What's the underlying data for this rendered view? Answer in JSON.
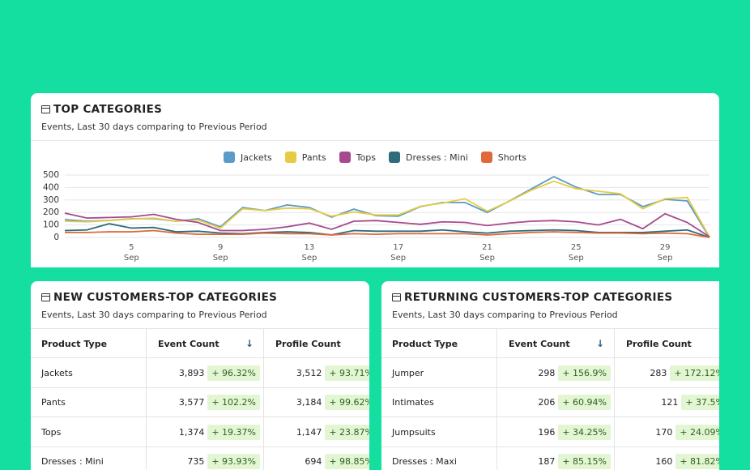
{
  "header": {
    "title": "TOP CATEGORIES",
    "subtitle": "Events, Last 30 days comparing to Previous Period"
  },
  "chart_data": {
    "type": "line",
    "categories": [
      null,
      null,
      null,
      "5\nSep",
      null,
      null,
      null,
      "9\nSep",
      null,
      null,
      null,
      "13\nSep",
      null,
      null,
      null,
      "17\nSep",
      null,
      null,
      null,
      "21\nSep",
      null,
      null,
      null,
      "25\nSep",
      null,
      null,
      null,
      "29\nSep",
      null,
      null
    ],
    "series": [
      {
        "name": "Jackets",
        "color": "#5b9bc7",
        "values": [
          143,
          130,
          136,
          150,
          150,
          130,
          150,
          85,
          240,
          215,
          260,
          240,
          162,
          227,
          175,
          170,
          247,
          280,
          280,
          200,
          292,
          390,
          487,
          403,
          344,
          344,
          247,
          305,
          292,
          0
        ]
      },
      {
        "name": "Pants",
        "color": "#e6cc43",
        "values": [
          130,
          125,
          135,
          148,
          155,
          130,
          140,
          75,
          230,
          215,
          235,
          230,
          170,
          205,
          180,
          180,
          250,
          275,
          310,
          210,
          290,
          380,
          450,
          390,
          370,
          350,
          230,
          310,
          320,
          5
        ]
      },
      {
        "name": "Tops",
        "color": "#a6498e",
        "values": [
          195,
          155,
          160,
          165,
          185,
          145,
          120,
          55,
          55,
          65,
          85,
          115,
          65,
          130,
          135,
          120,
          105,
          125,
          120,
          95,
          115,
          130,
          135,
          125,
          100,
          145,
          70,
          190,
          120,
          5
        ]
      },
      {
        "name": "Dresses : Mini",
        "color": "#2e6b7b",
        "values": [
          55,
          60,
          110,
          75,
          80,
          45,
          50,
          35,
          30,
          40,
          45,
          40,
          20,
          55,
          50,
          50,
          50,
          60,
          45,
          35,
          50,
          55,
          60,
          55,
          40,
          40,
          40,
          50,
          60,
          0
        ]
      },
      {
        "name": "Shorts",
        "color": "#e0693a",
        "values": [
          40,
          40,
          45,
          45,
          55,
          35,
          25,
          25,
          25,
          35,
          30,
          30,
          20,
          30,
          25,
          30,
          30,
          30,
          30,
          20,
          30,
          40,
          45,
          40,
          35,
          35,
          30,
          35,
          30,
          0
        ]
      }
    ],
    "ylim": [
      0,
      500
    ],
    "yticks": [
      0,
      100,
      200,
      300,
      400,
      500
    ],
    "grid": true,
    "legend": "top"
  },
  "panels": [
    {
      "title": "NEW CUSTOMERS-TOP CATEGORIES",
      "subtitle": "Events, Last 30 days comparing to Previous Period",
      "columns": [
        "Product Type",
        "Event Count",
        "Profile Count"
      ],
      "rows": [
        [
          "Jackets",
          "3,893",
          "+ 96.32%",
          "3,512",
          "+ 93.71%"
        ],
        [
          "Pants",
          "3,577",
          "+ 102.2%",
          "3,184",
          "+ 99.62%"
        ],
        [
          "Tops",
          "1,374",
          "+ 19.37%",
          "1,147",
          "+ 23.87%"
        ],
        [
          "Dresses : Mini",
          "735",
          "+ 93.93%",
          "694",
          "+ 98.85%"
        ]
      ]
    },
    {
      "title": "RETURNING CUSTOMERS-TOP CATEGORIES",
      "subtitle": "Events, Last 30 days comparing to Previous Period",
      "columns": [
        "Product Type",
        "Event Count",
        "Profile Count"
      ],
      "rows": [
        [
          "Jumper",
          "298",
          "+ 156.9%",
          "283",
          "+ 172.12%"
        ],
        [
          "Intimates",
          "206",
          "+ 60.94%",
          "121",
          "+ 37.5%"
        ],
        [
          "Jumpsuits",
          "196",
          "+ 34.25%",
          "170",
          "+ 24.09%"
        ],
        [
          "Dresses : Maxi",
          "187",
          "+ 85.15%",
          "160",
          "+ 81.82%"
        ]
      ]
    }
  ]
}
